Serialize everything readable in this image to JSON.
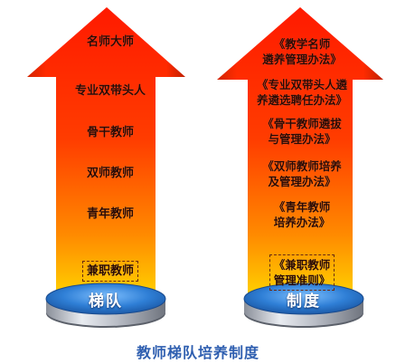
{
  "left_column": {
    "items": [
      "名师大师",
      "专业双带头人",
      "骨干教师",
      "双师教师",
      "青年教师",
      "兼职教师"
    ],
    "base_label": "梯队"
  },
  "right_column": {
    "items": [
      "《教学名师\n遴养管理办法》",
      "《专业双带头人遴\n养遴选聘任办法》",
      "《骨干教师遴拔\n与管理办法》",
      "《双师教师培养\n及管理办法》",
      "《青年教师\n培养办法》",
      "《兼职教师\n管理准则》"
    ],
    "base_label": "制度"
  },
  "caption": "教师梯队培养制度",
  "colors": {
    "arrow_top": "#ff1a00",
    "arrow_mid": "#ff5a00",
    "arrow_bottom": "#ffd000",
    "base_top": "#3f8ee0",
    "base_side": "#c8ccd4",
    "caption": "#2f5fb0"
  }
}
